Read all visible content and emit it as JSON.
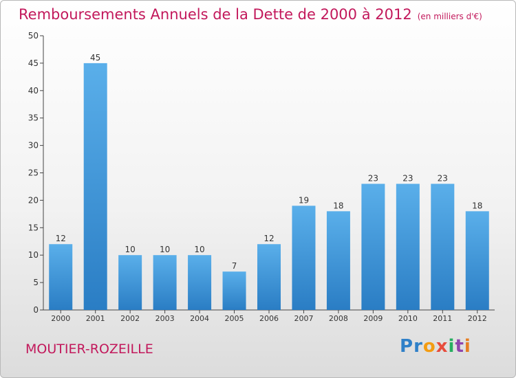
{
  "header": {
    "title": "Remboursements Annuels de la Dette de 2000 à 2012",
    "unit": "(en milliers d'€)"
  },
  "footer": {
    "commune": "MOUTIER-ROZEILLE",
    "logo": "Proxiti"
  },
  "colors": {
    "title": "#c2185b",
    "bar_top": "#5aafea",
    "bar_bottom": "#2a7dc4"
  },
  "chart_data": {
    "type": "bar",
    "categories": [
      "2000",
      "2001",
      "2002",
      "2003",
      "2004",
      "2005",
      "2006",
      "2007",
      "2008",
      "2009",
      "2010",
      "2011",
      "2012"
    ],
    "values": [
      12,
      45,
      10,
      10,
      10,
      7,
      12,
      19,
      18,
      23,
      23,
      23,
      18
    ],
    "ylim": [
      0,
      50
    ],
    "yticks": [
      0,
      5,
      10,
      15,
      20,
      25,
      30,
      35,
      40,
      45,
      50
    ],
    "grid": false,
    "data_labels": true
  }
}
